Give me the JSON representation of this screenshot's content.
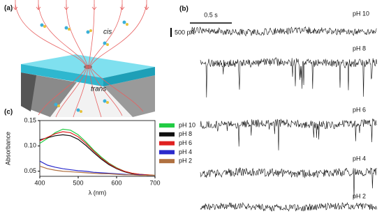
{
  "panels": {
    "a": {
      "label": "(a)",
      "cis": "cis",
      "trans": "trans"
    },
    "b": {
      "label": "(b)",
      "scale_time": "0.5 s",
      "scale_current": "500 pA",
      "traces": [
        "pH 10",
        "pH 8",
        "pH 6",
        "pH 4",
        "pH 2"
      ]
    }
  },
  "chart_data": {
    "type": "line",
    "panel_label": "(c)",
    "xlabel": "λ (nm)",
    "ylabel": "Absorbance",
    "x": [
      400,
      420,
      440,
      460,
      480,
      500,
      520,
      540,
      560,
      580,
      600,
      620,
      640,
      660,
      680,
      700
    ],
    "series": [
      {
        "name": "pH 10",
        "color": "#22cc44",
        "values": [
          0.105,
          0.115,
          0.126,
          0.133,
          0.131,
          0.122,
          0.108,
          0.092,
          0.078,
          0.066,
          0.057,
          0.05,
          0.046,
          0.044,
          0.043,
          0.042
        ]
      },
      {
        "name": "pH 8",
        "color": "#111111",
        "values": [
          0.112,
          0.116,
          0.12,
          0.122,
          0.12,
          0.113,
          0.101,
          0.087,
          0.074,
          0.063,
          0.055,
          0.049,
          0.045,
          0.043,
          0.042,
          0.042
        ]
      },
      {
        "name": "pH 6",
        "color": "#e02020",
        "values": [
          0.11,
          0.117,
          0.124,
          0.128,
          0.126,
          0.118,
          0.105,
          0.09,
          0.076,
          0.065,
          0.056,
          0.05,
          0.046,
          0.044,
          0.043,
          0.042
        ]
      },
      {
        "name": "pH 4",
        "color": "#2a2acc",
        "values": [
          0.07,
          0.062,
          0.058,
          0.055,
          0.053,
          0.051,
          0.05,
          0.048,
          0.047,
          0.046,
          0.045,
          0.044,
          0.043,
          0.043,
          0.042,
          0.042
        ]
      },
      {
        "name": "pH 2",
        "color": "#b07040",
        "values": [
          0.06,
          0.055,
          0.052,
          0.05,
          0.049,
          0.048,
          0.047,
          0.046,
          0.045,
          0.045,
          0.044,
          0.043,
          0.043,
          0.042,
          0.042,
          0.042
        ]
      }
    ],
    "xlim": [
      400,
      700
    ],
    "xticks": [
      400,
      500,
      600,
      700
    ],
    "ylim": [
      0.04,
      0.15
    ],
    "yticks": [
      {
        "value": 0.05,
        "label": "0.05"
      },
      {
        "value": 0.1,
        "label": "0.10"
      },
      {
        "value": 0.15,
        "label": "0.15"
      }
    ]
  }
}
